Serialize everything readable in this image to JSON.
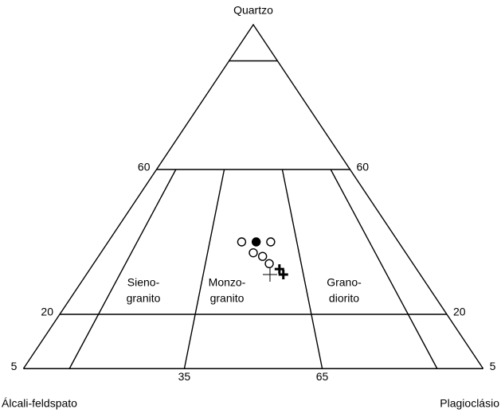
{
  "vertices": {
    "top": "Quartzo",
    "left": "Álcali-feldspato",
    "right": "Plagioclásio"
  },
  "q_lines": [
    90,
    60,
    20,
    5
  ],
  "q_tick_labels": [
    60,
    20,
    5
  ],
  "p_lines": [
    10,
    35,
    65,
    90
  ],
  "p_tick_labels": [
    35,
    65
  ],
  "fields": [
    {
      "lines": [
        "Sieno-",
        "granito"
      ]
    },
    {
      "lines": [
        "Monzo-",
        "granito"
      ]
    },
    {
      "lines": [
        "Grano-",
        "diorito"
      ]
    }
  ],
  "points": [
    {
      "q": 40,
      "p": 46,
      "marker": "open-circle"
    },
    {
      "q": 40,
      "p": 56,
      "marker": "open-circle"
    },
    {
      "q": 40,
      "p": 51,
      "marker": "filled-circle"
    },
    {
      "q": 37,
      "p": 50,
      "marker": "open-circle"
    },
    {
      "q": 36,
      "p": 53,
      "marker": "open-circle"
    },
    {
      "q": 34,
      "p": 55,
      "marker": "open-circle"
    },
    {
      "q": 31,
      "p": 55,
      "marker": "cross"
    },
    {
      "q": 32.5,
      "p": 58,
      "marker": "bold-cross"
    },
    {
      "q": 31,
      "p": 59,
      "marker": "bold-cross"
    }
  ]
}
